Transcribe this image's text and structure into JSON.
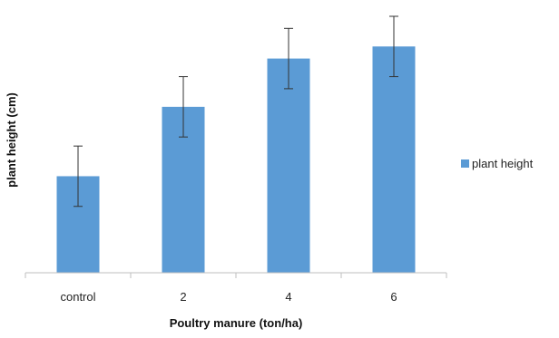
{
  "chart_data": {
    "type": "bar",
    "categories": [
      "control",
      "2",
      "4",
      "6"
    ],
    "series": [
      {
        "name": "plant height",
        "values": [
          32,
          55,
          71,
          75
        ],
        "errors": [
          10,
          10,
          10,
          10
        ],
        "color": "#5b9bd5"
      }
    ],
    "xlabel": "Poultry manure (ton/ha)",
    "ylabel": "plant height (cm)",
    "ylim": [
      0,
      88
    ],
    "grid": false,
    "legend_position": "right"
  }
}
